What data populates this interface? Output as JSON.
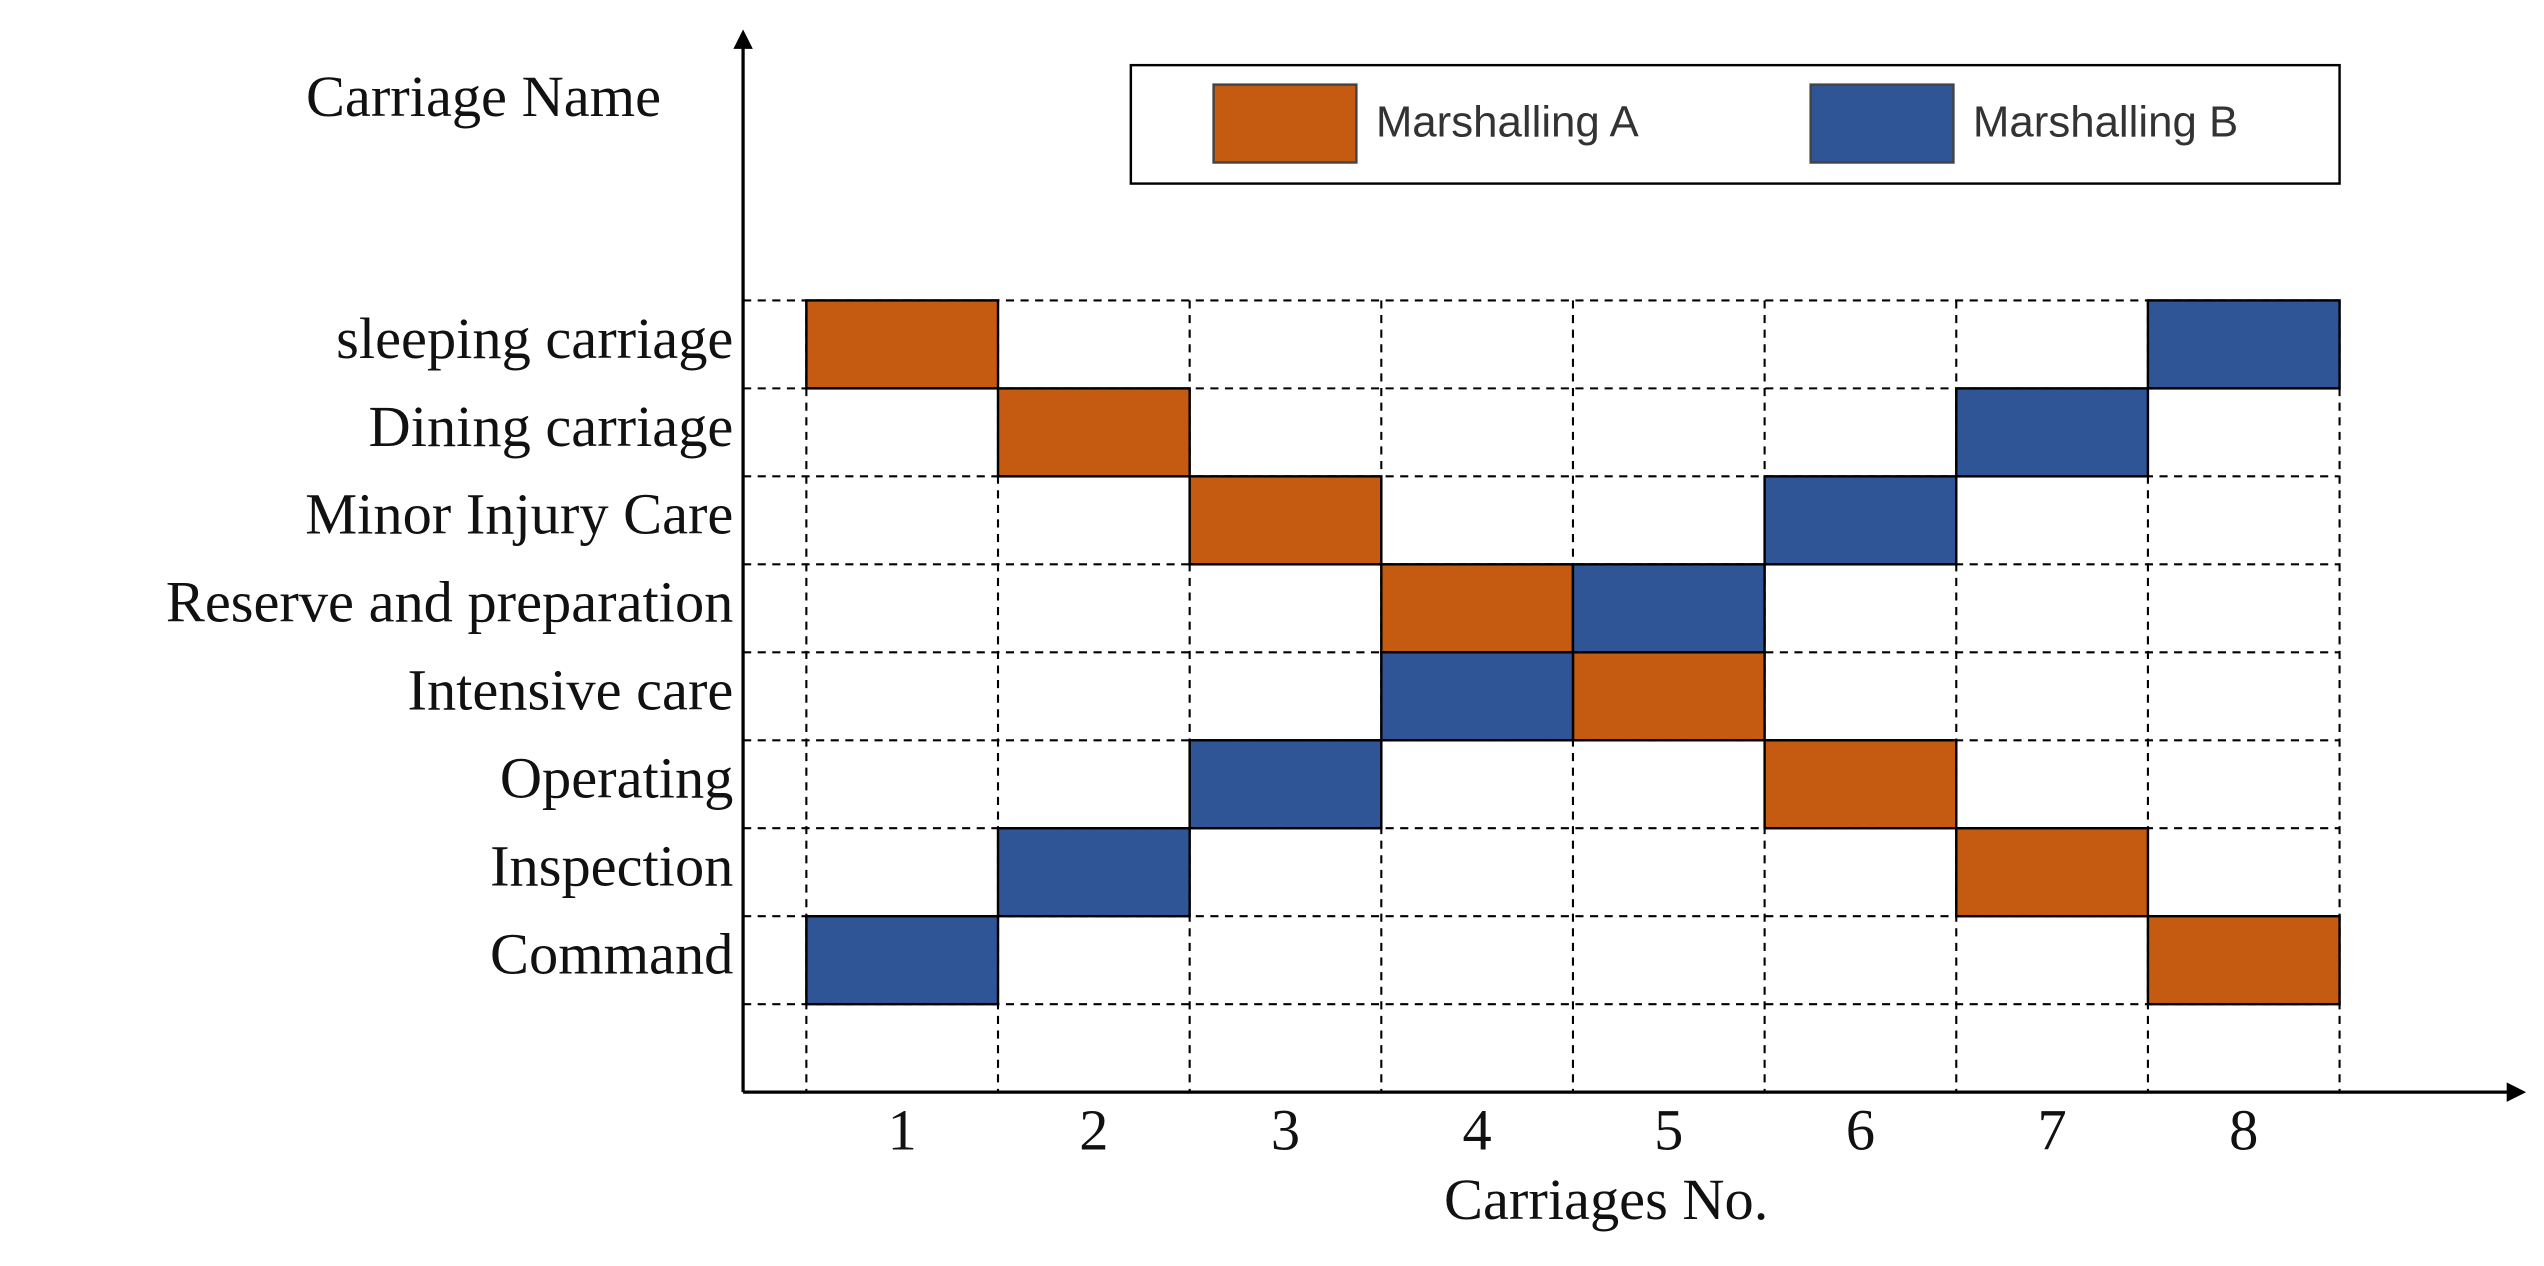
{
  "chart_data": {
    "type": "grid",
    "y_axis_label": "Carriage Name",
    "x_axis_label": "Carriages No.",
    "categories": [
      1,
      2,
      3,
      4,
      5,
      6,
      7,
      8
    ],
    "rows": [
      "sleeping carriage",
      "Dining carriage",
      "Minor Injury Care",
      "Reserve and preparation",
      "Intensive care",
      "Operating",
      "Inspection",
      "Command"
    ],
    "series": [
      {
        "name": "Marshalling A",
        "color": "#c55a11",
        "values": [
          "sleeping carriage",
          "Dining carriage",
          "Minor Injury Care",
          "Reserve and preparation",
          "Intensive care",
          "Operating",
          "Inspection",
          "Command"
        ]
      },
      {
        "name": "Marshalling B",
        "color": "#2f5597",
        "values": [
          "Command",
          "Inspection",
          "Operating",
          "Intensive care",
          "Reserve and preparation",
          "Minor Injury Care",
          "Dining carriage",
          "sleeping carriage"
        ]
      }
    ],
    "grid": true,
    "legend": "top"
  }
}
